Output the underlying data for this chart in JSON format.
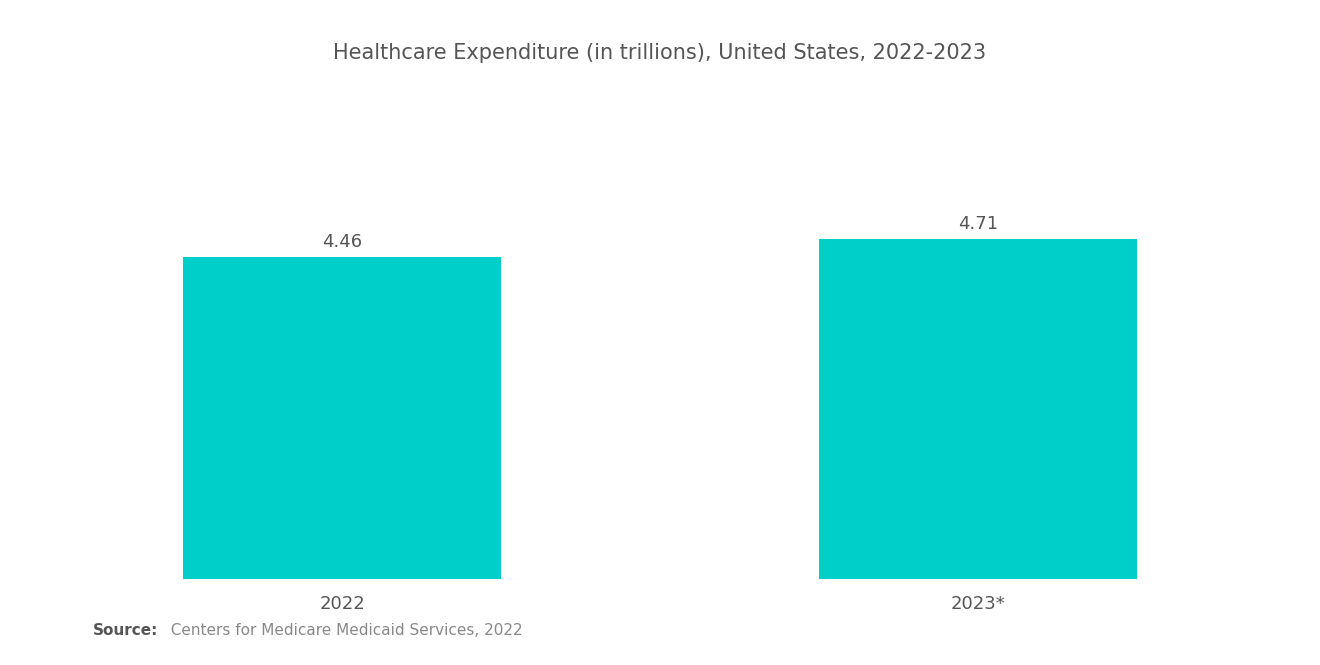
{
  "title": "Healthcare Expenditure (in trillions), United States, 2022-2023",
  "categories": [
    "2022",
    "2023*"
  ],
  "values": [
    4.46,
    4.71
  ],
  "bar_color": "#00CEC9",
  "bar_width": 0.28,
  "x_positions": [
    0.22,
    0.78
  ],
  "value_labels": [
    "4.46",
    "4.71"
  ],
  "ylim": [
    0,
    6.0
  ],
  "xlim": [
    0.0,
    1.0
  ],
  "background_color": "#ffffff",
  "title_fontsize": 15,
  "label_fontsize": 13,
  "value_fontsize": 13,
  "source_bold": "Source:",
  "source_text": "  Centers for Medicare Medicaid Services, 2022",
  "source_fontsize": 11,
  "text_color": "#555555",
  "value_color": "#555555"
}
